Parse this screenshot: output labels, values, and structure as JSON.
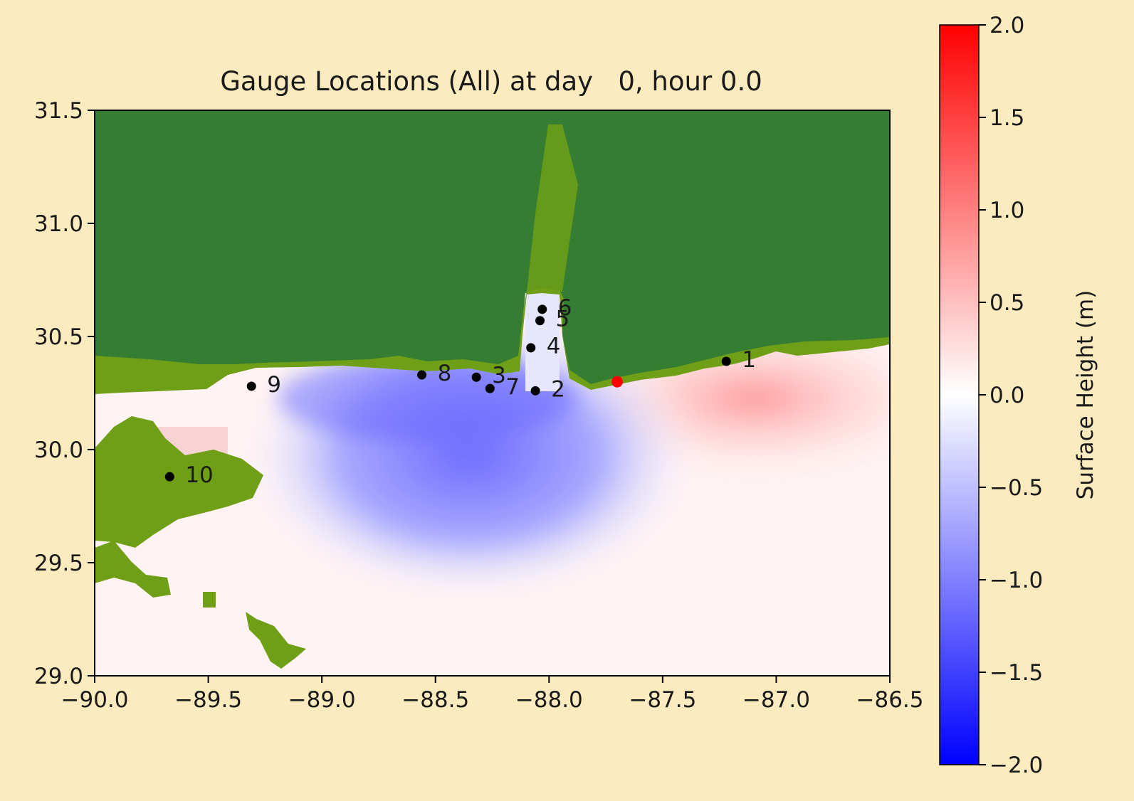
{
  "chart_data": {
    "type": "heatmap",
    "title": "Gauge Locations (All) at day   0, hour 0.0",
    "xlabel": "",
    "ylabel": "",
    "xlim": [
      -90.0,
      -86.5
    ],
    "ylim": [
      29.0,
      31.5
    ],
    "x_ticks": [
      -90.0,
      -89.5,
      -89.0,
      -88.5,
      -88.0,
      -87.5,
      -87.0,
      -86.5
    ],
    "x_tick_labels": [
      "−90.0",
      "−89.5",
      "−89.0",
      "−88.5",
      "−88.0",
      "−87.5",
      "−87.0",
      "−86.5"
    ],
    "y_ticks": [
      29.0,
      29.5,
      30.0,
      30.5,
      31.0,
      31.5
    ],
    "y_tick_labels": [
      "29.0",
      "29.5",
      "30.0",
      "30.5",
      "31.0",
      "31.5"
    ],
    "grid": false,
    "colorbar": {
      "label": "Surface Height (m)",
      "range": [
        -2.0,
        2.0
      ],
      "colormap": [
        "#0000ff",
        "#ffffff",
        "#ff0000"
      ],
      "ticks": [
        2.0,
        1.5,
        1.0,
        0.5,
        0.0,
        -0.5,
        -1.0,
        -1.5,
        -2.0
      ],
      "tick_labels": [
        "2.0",
        "1.5",
        "1.0",
        "0.5",
        "0.0",
        "−0.5",
        "−1.0",
        "−1.5",
        "−2.0"
      ]
    },
    "land_colors": {
      "land": "#367d34",
      "wetland": "#6f9f16"
    },
    "storm_marker": {
      "lon": -87.7,
      "lat": 30.3,
      "color": "#ff0000"
    },
    "gauges": [
      {
        "label": "1",
        "lon": -87.22,
        "lat": 30.39
      },
      {
        "label": "2",
        "lon": -88.06,
        "lat": 30.26
      },
      {
        "label": "3",
        "lon": -88.32,
        "lat": 30.32
      },
      {
        "label": "4",
        "lon": -88.08,
        "lat": 30.45
      },
      {
        "label": "5",
        "lon": -88.04,
        "lat": 30.57
      },
      {
        "label": "6",
        "lon": -88.03,
        "lat": 30.62
      },
      {
        "label": "7",
        "lon": -88.26,
        "lat": 30.27
      },
      {
        "label": "8",
        "lon": -88.56,
        "lat": 30.33
      },
      {
        "label": "9",
        "lon": -89.31,
        "lat": 30.28
      },
      {
        "label": "10",
        "lon": -89.67,
        "lat": 29.88
      }
    ]
  }
}
